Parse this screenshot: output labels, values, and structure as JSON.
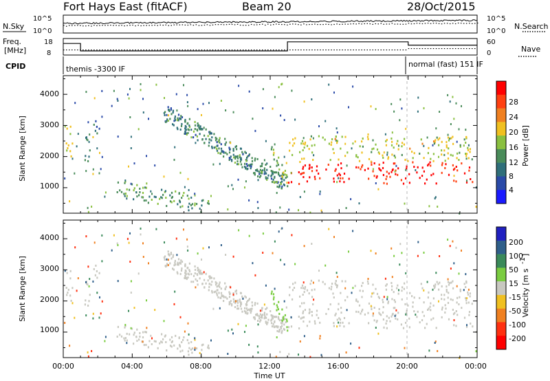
{
  "header": {
    "radar": "Fort Hays East (fitACF)",
    "beam": "Beam 20",
    "date": "28/Oct/2015"
  },
  "status_panels": {
    "noise_left_label": "N.Sky",
    "noise_right_label": "N.Search",
    "freq_left_label_1": "Freq.",
    "freq_left_label_2": "[MHz]",
    "freq_right_label": "Nave",
    "cpid_label": "CPID",
    "noise_ticks_left": [
      "10^5",
      "10^0"
    ],
    "noise_ticks_right": [
      "10^5",
      "10^0"
    ],
    "freq_ticks_left": [
      "18",
      "8"
    ],
    "freq_ticks_right": [
      "60",
      "0"
    ],
    "cpid_segments": [
      {
        "label": "themis -3300 IF",
        "start_hour": 0,
        "end_hour": 20.0
      },
      {
        "label": "normal (fast) 151 IF",
        "start_hour": 20.0,
        "end_hour": 24
      }
    ],
    "freq_steps_mhz": [
      {
        "start_hour": 0,
        "end_hour": 1.0,
        "value": 15
      },
      {
        "start_hour": 1.0,
        "end_hour": 13.0,
        "value": 10.5
      },
      {
        "start_hour": 13.0,
        "end_hour": 20.0,
        "value": 16
      },
      {
        "start_hour": 20.0,
        "end_hour": 24,
        "value": 14
      }
    ]
  },
  "axes": {
    "ylabel": "Slant Range [km]",
    "xlabel": "Time UT",
    "x_ticks": [
      "00:00",
      "04:00",
      "08:00",
      "12:00",
      "16:00",
      "20:00",
      "00:00"
    ],
    "y_ticks": [
      "1000",
      "2000",
      "3000",
      "4000"
    ]
  },
  "colorbars": {
    "power": {
      "label": "Power [dB]",
      "ticks": [
        "4",
        "8",
        "12",
        "16",
        "20",
        "24",
        "28"
      ],
      "colors": [
        "#1a1aff",
        "#2a4aa8",
        "#2f6f7a",
        "#4a8c5a",
        "#8ac040",
        "#f0c020",
        "#f08020",
        "#ff4010",
        "#ff0000"
      ]
    },
    "velocity": {
      "label": "Velocity [m s",
      "label_sup": "-1",
      "ticks": [
        "200",
        "100",
        "50",
        "15",
        "-15",
        "-50",
        "-100",
        "-200"
      ],
      "colors": [
        "#2020c0",
        "#2f5f8a",
        "#3a8a5a",
        "#7acc40",
        "#c8c8c0",
        "#f0c020",
        "#f08020",
        "#ff3010",
        "#ff0000"
      ]
    }
  },
  "chart_data": {
    "type": "heatmap",
    "x_range_hours": [
      0,
      24
    ],
    "y_range_km": [
      180,
      4600
    ],
    "panels": [
      "Power [dB]",
      "Velocity [m s-1]"
    ],
    "scatter_regions": [
      {
        "t0": 0.1,
        "t1": 0.5,
        "r0": 1750,
        "r1": 3250,
        "power_db": 16,
        "velocity": 0
      },
      {
        "t0": 1.1,
        "t1": 1.6,
        "r0": 1800,
        "r1": 2700,
        "power_db": 10,
        "velocity": 0
      },
      {
        "t0": 1.6,
        "t1": 2.1,
        "r0": 2500,
        "r1": 3200,
        "power_db": 8,
        "velocity": 0
      },
      {
        "t0": 3.0,
        "t1": 8.5,
        "r0": 350,
        "r1": 1250,
        "power_db": 12,
        "velocity": -5
      },
      {
        "t0": 5.8,
        "t1": 12.9,
        "r0": 1100,
        "r1": 3600,
        "power_db": 10,
        "velocity": 0
      },
      {
        "t0": 12.0,
        "t1": 13.0,
        "r0": 1100,
        "r1": 2400,
        "power_db": 14,
        "velocity": 30
      },
      {
        "t0": 13.0,
        "t1": 23.8,
        "r0": 1150,
        "r1": 1850,
        "power_db": 28,
        "velocity": 0
      },
      {
        "t0": 13.0,
        "t1": 23.8,
        "r0": 1850,
        "r1": 2700,
        "power_db": 16,
        "velocity": 0
      }
    ]
  }
}
